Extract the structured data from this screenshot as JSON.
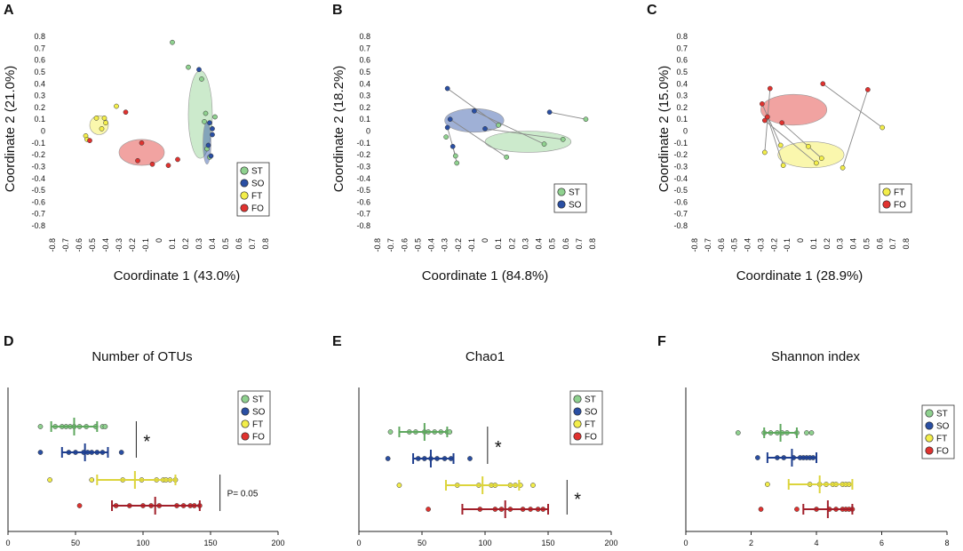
{
  "colors": {
    "ST": "#8fd18f",
    "SO": "#2a4fa3",
    "FT": "#f3ee4a",
    "FO": "#e0322f",
    "ST_err": "#5fa85f",
    "SO_err": "#1f3f8f",
    "FT_err": "#dcd43c",
    "FO_err": "#a11f2a"
  },
  "chart_data": [
    {
      "panel": "A",
      "type": "scatter",
      "xlabel": "Coordinate 1 (43.0%)",
      "ylabel": "Coordinate 2 (21.0%)",
      "xlim": [
        -0.8,
        0.8
      ],
      "ylim": [
        -0.8,
        0.8
      ],
      "ticks": [
        "-0.8",
        "-0.7",
        "-0.6",
        "-0.5",
        "-0.4",
        "-0.3",
        "-0.2",
        "-0.1",
        "0",
        "0.1",
        "0.2",
        "0.3",
        "0.4",
        "0.5",
        "0.6",
        "0.7",
        "0.8"
      ],
      "tick_values": [
        -0.8,
        -0.7,
        -0.6,
        -0.5,
        -0.4,
        -0.3,
        -0.2,
        -0.1,
        0,
        0.1,
        0.2,
        0.3,
        0.4,
        0.5,
        0.6,
        0.7,
        0.8
      ],
      "legend": [
        "ST",
        "SO",
        "FT",
        "FO"
      ],
      "ellipses": [
        {
          "group": "ST",
          "cx": 0.31,
          "cy": 0.14,
          "rx": 0.09,
          "ry": 0.37
        },
        {
          "group": "SO",
          "cx": 0.36,
          "cy": -0.1,
          "rx": 0.03,
          "ry": 0.18
        },
        {
          "group": "FT",
          "cx": -0.45,
          "cy": 0.05,
          "rx": 0.07,
          "ry": 0.08
        },
        {
          "group": "FO",
          "cx": -0.13,
          "cy": -0.18,
          "rx": 0.17,
          "ry": 0.11
        }
      ],
      "points": [
        {
          "g": "ST",
          "x": 0.1,
          "y": 0.75
        },
        {
          "g": "ST",
          "x": 0.22,
          "y": 0.54
        },
        {
          "g": "ST",
          "x": 0.32,
          "y": 0.44
        },
        {
          "g": "ST",
          "x": 0.35,
          "y": 0.15
        },
        {
          "g": "ST",
          "x": 0.42,
          "y": 0.12
        },
        {
          "g": "ST",
          "x": 0.36,
          "y": -0.15
        },
        {
          "g": "ST",
          "x": 0.38,
          "y": -0.22
        },
        {
          "g": "ST",
          "x": 0.34,
          "y": 0.08
        },
        {
          "g": "SO",
          "x": 0.3,
          "y": 0.52
        },
        {
          "g": "SO",
          "x": 0.38,
          "y": 0.07
        },
        {
          "g": "SO",
          "x": 0.4,
          "y": -0.03
        },
        {
          "g": "SO",
          "x": 0.37,
          "y": -0.12
        },
        {
          "g": "SO",
          "x": 0.39,
          "y": -0.21
        },
        {
          "g": "SO",
          "x": 0.4,
          "y": 0.02
        },
        {
          "g": "FT",
          "x": -0.47,
          "y": 0.11
        },
        {
          "g": "FT",
          "x": -0.43,
          "y": 0.02
        },
        {
          "g": "FT",
          "x": -0.4,
          "y": 0.07
        },
        {
          "g": "FT",
          "x": -0.55,
          "y": -0.04
        },
        {
          "g": "FT",
          "x": -0.32,
          "y": 0.21
        },
        {
          "g": "FT",
          "x": -0.41,
          "y": 0.11
        },
        {
          "g": "FT",
          "x": -0.54,
          "y": -0.07
        },
        {
          "g": "FO",
          "x": -0.25,
          "y": 0.16
        },
        {
          "g": "FO",
          "x": -0.13,
          "y": -0.1
        },
        {
          "g": "FO",
          "x": -0.05,
          "y": -0.28
        },
        {
          "g": "FO",
          "x": -0.16,
          "y": -0.25
        },
        {
          "g": "FO",
          "x": 0.07,
          "y": -0.29
        },
        {
          "g": "FO",
          "x": 0.14,
          "y": -0.24
        },
        {
          "g": "FO",
          "x": -0.52,
          "y": -0.08
        }
      ],
      "lines": []
    },
    {
      "panel": "B",
      "type": "scatter",
      "xlabel": "Coordinate 1 (84.8%)",
      "ylabel": "Coordinate 2 (18.2%)",
      "xlim": [
        -0.8,
        0.8
      ],
      "ylim": [
        -0.8,
        0.8
      ],
      "ticks": [
        "-0.8",
        "-0.7",
        "-0.6",
        "-0.5",
        "-0.4",
        "-0.3",
        "-0.2",
        "-0.1",
        "0",
        "0.1",
        "0.2",
        "0.3",
        "0.4",
        "0.5",
        "0.6",
        "0.7",
        "0.8"
      ],
      "tick_values": [
        -0.8,
        -0.7,
        -0.6,
        -0.5,
        -0.4,
        -0.3,
        -0.2,
        -0.1,
        0,
        0.1,
        0.2,
        0.3,
        0.4,
        0.5,
        0.6,
        0.7,
        0.8
      ],
      "legend": [
        "ST",
        "SO"
      ],
      "ellipses": [
        {
          "group": "ST",
          "cx": 0.32,
          "cy": -0.09,
          "rx": 0.32,
          "ry": 0.09
        },
        {
          "group": "SO",
          "cx": -0.08,
          "cy": 0.09,
          "rx": 0.22,
          "ry": 0.1
        }
      ],
      "points": [
        {
          "g": "SO",
          "x": -0.28,
          "y": 0.36
        },
        {
          "g": "SO",
          "x": -0.08,
          "y": 0.17
        },
        {
          "g": "SO",
          "x": 0.48,
          "y": 0.16
        },
        {
          "g": "SO",
          "x": -0.26,
          "y": 0.1
        },
        {
          "g": "SO",
          "x": -0.24,
          "y": -0.13
        },
        {
          "g": "SO",
          "x": -0.28,
          "y": 0.03
        },
        {
          "g": "SO",
          "x": 0.0,
          "y": 0.02
        },
        {
          "g": "ST",
          "x": 0.75,
          "y": 0.1
        },
        {
          "g": "ST",
          "x": 0.1,
          "y": 0.05
        },
        {
          "g": "ST",
          "x": 0.44,
          "y": -0.11
        },
        {
          "g": "ST",
          "x": 0.58,
          "y": -0.07
        },
        {
          "g": "ST",
          "x": 0.16,
          "y": -0.22
        },
        {
          "g": "ST",
          "x": -0.22,
          "y": -0.21
        },
        {
          "g": "ST",
          "x": -0.21,
          "y": -0.27
        },
        {
          "g": "ST",
          "x": -0.29,
          "y": -0.05
        }
      ],
      "lines": [
        [
          -0.28,
          0.36,
          0.1,
          0.05
        ],
        [
          -0.08,
          0.17,
          0.44,
          -0.11
        ],
        [
          0.48,
          0.16,
          0.75,
          0.1
        ],
        [
          -0.26,
          0.1,
          0.16,
          -0.22
        ],
        [
          -0.24,
          -0.13,
          -0.21,
          -0.27
        ],
        [
          -0.28,
          0.03,
          -0.22,
          -0.21
        ],
        [
          0.0,
          0.02,
          0.58,
          -0.07
        ]
      ]
    },
    {
      "panel": "C",
      "type": "scatter",
      "xlabel": "Coordinate 1 (28.9%)",
      "ylabel": "Coordinate 2 (15.0%)",
      "xlim": [
        -0.8,
        0.8
      ],
      "ylim": [
        -0.8,
        0.8
      ],
      "ticks": [
        "-0.8",
        "-0.7",
        "-0.6",
        "-0.5",
        "-0.4",
        "-0.3",
        "-0.2",
        "-0.1",
        "0",
        "0.1",
        "0.2",
        "0.3",
        "0.4",
        "0.5",
        "0.6",
        "0.7",
        "0.8"
      ],
      "tick_values": [
        -0.8,
        -0.7,
        -0.6,
        -0.5,
        -0.4,
        -0.3,
        -0.2,
        -0.1,
        0,
        0.1,
        0.2,
        0.3,
        0.4,
        0.5,
        0.6,
        0.7,
        0.8
      ],
      "legend": [
        "FT",
        "FO"
      ],
      "ellipses": [
        {
          "group": "FO",
          "cx": -0.05,
          "cy": 0.18,
          "rx": 0.25,
          "ry": 0.13
        },
        {
          "group": "FT",
          "cx": 0.08,
          "cy": -0.2,
          "rx": 0.25,
          "ry": 0.11
        }
      ],
      "points": [
        {
          "g": "FO",
          "x": -0.23,
          "y": 0.36
        },
        {
          "g": "FO",
          "x": 0.17,
          "y": 0.4
        },
        {
          "g": "FO",
          "x": 0.51,
          "y": 0.35
        },
        {
          "g": "FO",
          "x": -0.29,
          "y": 0.23
        },
        {
          "g": "FO",
          "x": -0.25,
          "y": 0.12
        },
        {
          "g": "FO",
          "x": -0.27,
          "y": 0.09
        },
        {
          "g": "FO",
          "x": -0.14,
          "y": 0.07
        },
        {
          "g": "FT",
          "x": 0.62,
          "y": 0.03
        },
        {
          "g": "FT",
          "x": -0.27,
          "y": -0.18
        },
        {
          "g": "FT",
          "x": -0.15,
          "y": -0.12
        },
        {
          "g": "FT",
          "x": 0.06,
          "y": -0.13
        },
        {
          "g": "FT",
          "x": -0.13,
          "y": -0.29
        },
        {
          "g": "FT",
          "x": 0.16,
          "y": -0.23
        },
        {
          "g": "FT",
          "x": 0.12,
          "y": -0.27
        },
        {
          "g": "FT",
          "x": 0.32,
          "y": -0.31
        }
      ],
      "lines": [
        [
          -0.23,
          0.36,
          -0.27,
          -0.18
        ],
        [
          0.17,
          0.4,
          0.62,
          0.03
        ],
        [
          0.51,
          0.35,
          0.32,
          -0.31
        ],
        [
          -0.29,
          0.23,
          -0.15,
          -0.12
        ],
        [
          -0.25,
          0.12,
          -0.13,
          -0.29
        ],
        [
          -0.27,
          0.09,
          0.12,
          -0.27
        ],
        [
          -0.14,
          0.07,
          0.16,
          -0.23
        ]
      ]
    },
    {
      "panel": "D",
      "type": "dot-errorbar",
      "title": "Number of OTUs",
      "xlim": [
        0,
        200
      ],
      "xticks": [
        0,
        50,
        100,
        150,
        200
      ],
      "legend": [
        "ST",
        "SO",
        "FT",
        "FO"
      ],
      "series": [
        {
          "name": "ST",
          "mean": 49,
          "lo": 32,
          "hi": 66,
          "points": [
            24,
            35,
            40,
            43,
            46,
            49,
            53,
            58,
            65,
            70,
            72
          ]
        },
        {
          "name": "SO",
          "mean": 57,
          "lo": 40,
          "hi": 74,
          "points": [
            24,
            45,
            50,
            56,
            59,
            62,
            66,
            70,
            84
          ]
        },
        {
          "name": "FT",
          "mean": 94,
          "lo": 66,
          "hi": 124,
          "points": [
            31,
            62,
            85,
            99,
            110,
            115,
            117,
            120,
            124
          ]
        },
        {
          "name": "FO",
          "mean": 109,
          "lo": 77,
          "hi": 142,
          "points": [
            53,
            80,
            90,
            100,
            106,
            112,
            125,
            130,
            135,
            138,
            142
          ]
        }
      ],
      "annotations": [
        {
          "text": "*",
          "rows": [
            0,
            1
          ],
          "x": 95
        },
        {
          "text": "P= 0.05",
          "rows": [
            2,
            3
          ],
          "x": 157
        }
      ]
    },
    {
      "panel": "E",
      "type": "dot-errorbar",
      "title": "Chao1",
      "xlim": [
        0,
        200
      ],
      "xticks": [
        0,
        50,
        100,
        150,
        200
      ],
      "legend": [
        "ST",
        "SO",
        "FT",
        "FO"
      ],
      "series": [
        {
          "name": "ST",
          "mean": 52,
          "lo": 32,
          "hi": 70,
          "points": [
            25,
            40,
            45,
            52,
            55,
            60,
            65,
            70,
            72
          ]
        },
        {
          "name": "SO",
          "mean": 57,
          "lo": 43,
          "hi": 75,
          "points": [
            23,
            47,
            52,
            57,
            62,
            68,
            73,
            88
          ]
        },
        {
          "name": "FT",
          "mean": 98,
          "lo": 69,
          "hi": 127,
          "points": [
            32,
            78,
            95,
            105,
            108,
            120,
            124,
            128,
            138
          ]
        },
        {
          "name": "FO",
          "mean": 116,
          "lo": 82,
          "hi": 150,
          "points": [
            55,
            96,
            108,
            113,
            120,
            130,
            136,
            142,
            146
          ]
        }
      ],
      "annotations": [
        {
          "text": "*",
          "rows": [
            0,
            1
          ],
          "x": 102
        },
        {
          "text": "*",
          "rows": [
            2,
            3
          ],
          "x": 165
        }
      ]
    },
    {
      "panel": "F",
      "type": "dot-errorbar",
      "title": "Shannon index",
      "xlim": [
        0,
        8
      ],
      "xticks": [
        0,
        2,
        4,
        6,
        8
      ],
      "legend": [
        "ST",
        "SO",
        "FT",
        "FO"
      ],
      "series": [
        {
          "name": "ST",
          "mean": 2.9,
          "lo": 2.4,
          "hi": 3.4,
          "points": [
            1.6,
            2.4,
            2.6,
            2.8,
            2.95,
            3.1,
            3.4,
            3.7,
            3.85
          ]
        },
        {
          "name": "SO",
          "mean": 3.25,
          "lo": 2.5,
          "hi": 4.0,
          "points": [
            2.2,
            2.8,
            3.0,
            3.3,
            3.5,
            3.6,
            3.7,
            3.8,
            3.9
          ]
        },
        {
          "name": "FT",
          "mean": 4.1,
          "lo": 3.15,
          "hi": 5.1,
          "points": [
            2.5,
            3.8,
            4.1,
            4.3,
            4.5,
            4.6,
            4.8,
            4.9,
            5.0
          ]
        },
        {
          "name": "FO",
          "mean": 4.35,
          "lo": 3.6,
          "hi": 5.1,
          "points": [
            2.3,
            3.4,
            4.0,
            4.4,
            4.6,
            4.8,
            4.9,
            5.0,
            5.1
          ]
        }
      ],
      "annotations": []
    }
  ]
}
